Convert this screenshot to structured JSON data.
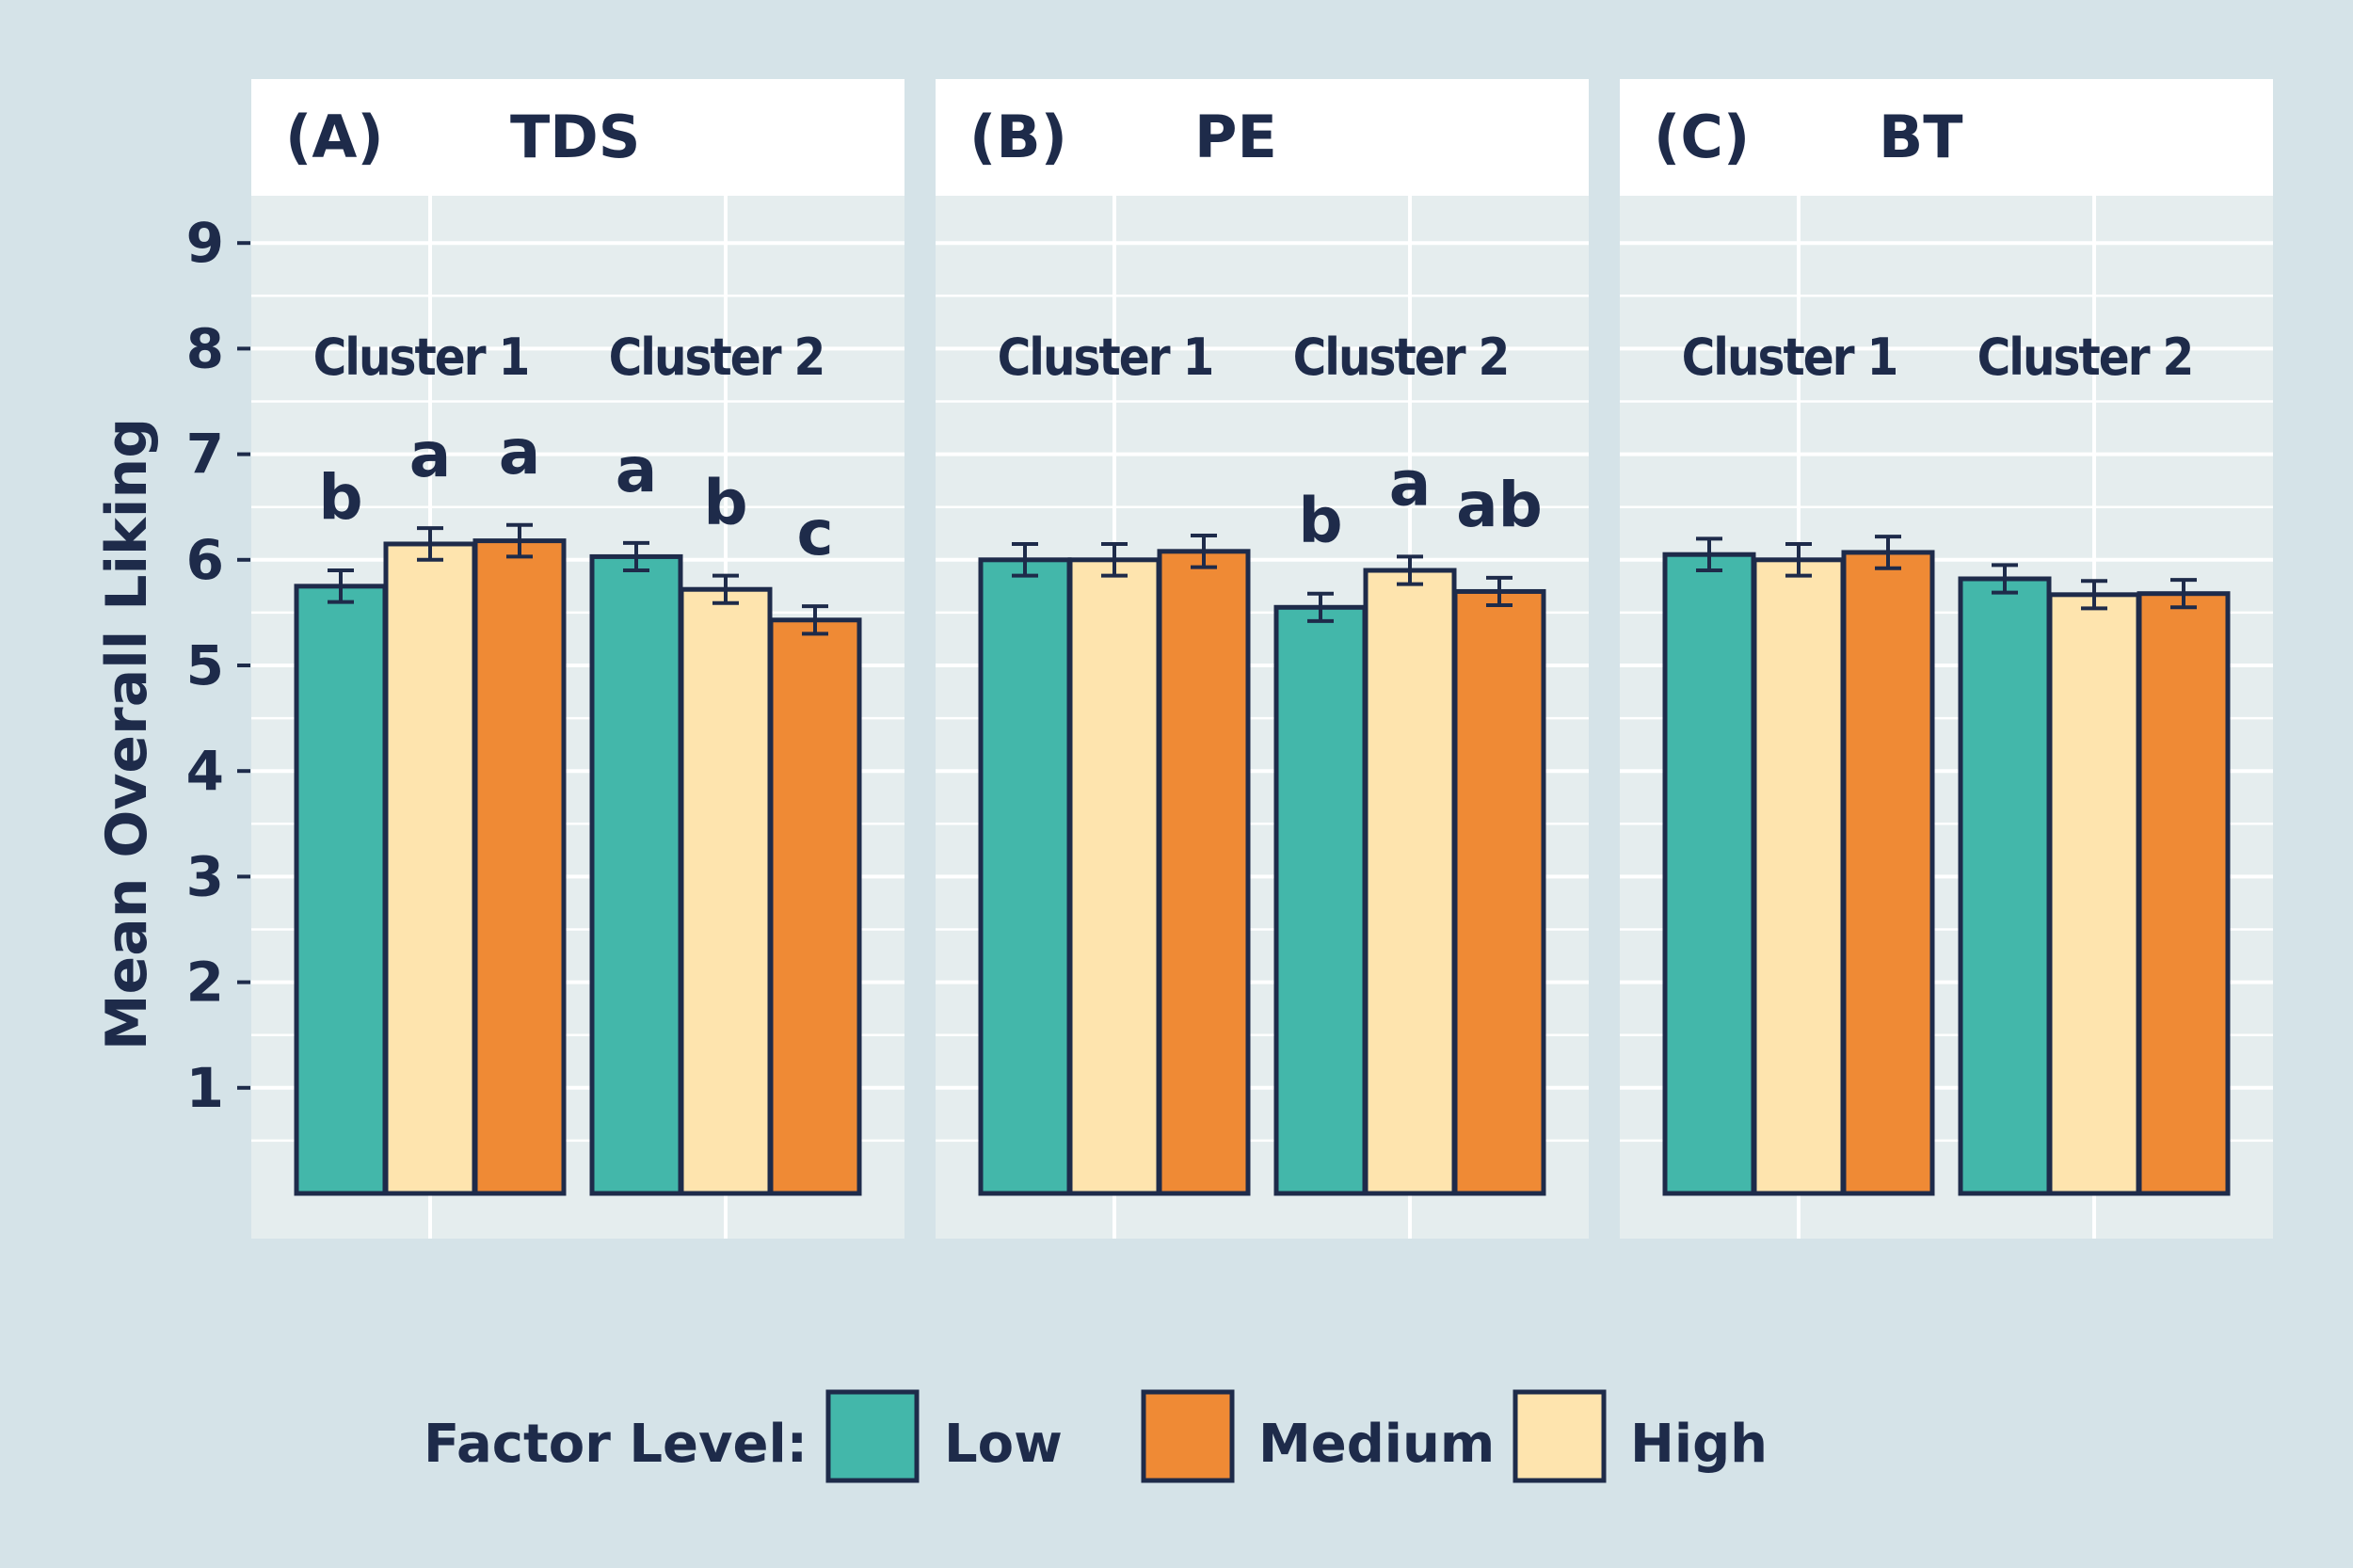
{
  "chart_data": {
    "type": "bar",
    "ylabel": "Mean Overall Liking",
    "yticks": [
      "1",
      "2",
      "3",
      "4",
      "5",
      "6",
      "7",
      "8",
      "9"
    ],
    "ylim": [
      0,
      9.5
    ],
    "grid": true,
    "legend": {
      "title": "Factor Level:",
      "placement": "bottom",
      "items": [
        {
          "name": "Low",
          "color": "#43b7aa"
        },
        {
          "name": "Medium",
          "color": "#ef8a35"
        },
        {
          "name": "High",
          "color": "#fee4ae"
        }
      ]
    },
    "bar_order": [
      "Low",
      "High",
      "Medium"
    ],
    "colors": {
      "Low": "#43b7aa",
      "High": "#fee4ae",
      "Medium": "#ef8a35",
      "outline": "#1e2b4a"
    },
    "panels": [
      {
        "label": "(A)",
        "factor": "TDS",
        "clusters": [
          {
            "name": "Cluster 1",
            "values": {
              "Low": 5.75,
              "High": 6.15,
              "Medium": 6.18
            },
            "errors": {
              "Low": 0.15,
              "High": 0.15,
              "Medium": 0.15
            },
            "sig": {
              "Low": "b",
              "High": "a",
              "Medium": "a"
            }
          },
          {
            "name": "Cluster 2",
            "values": {
              "Low": 6.03,
              "High": 5.72,
              "Medium": 5.43
            },
            "errors": {
              "Low": 0.13,
              "High": 0.13,
              "Medium": 0.13
            },
            "sig": {
              "Low": "a",
              "High": "b",
              "Medium": "c"
            }
          }
        ]
      },
      {
        "label": "(B)",
        "factor": "PE",
        "clusters": [
          {
            "name": "Cluster 1",
            "values": {
              "Low": 6.0,
              "High": 6.0,
              "Medium": 6.08
            },
            "errors": {
              "Low": 0.15,
              "High": 0.15,
              "Medium": 0.15
            },
            "sig": {}
          },
          {
            "name": "Cluster 2",
            "values": {
              "Low": 5.55,
              "High": 5.9,
              "Medium": 5.7
            },
            "errors": {
              "Low": 0.13,
              "High": 0.13,
              "Medium": 0.13
            },
            "sig": {
              "Low": "b",
              "High": "a",
              "Medium": "ab"
            }
          }
        ]
      },
      {
        "label": "(C)",
        "factor": "BT",
        "clusters": [
          {
            "name": "Cluster 1",
            "values": {
              "Low": 6.05,
              "High": 6.0,
              "Medium": 6.07
            },
            "errors": {
              "Low": 0.15,
              "High": 0.15,
              "Medium": 0.15
            },
            "sig": {}
          },
          {
            "name": "Cluster 2",
            "values": {
              "Low": 5.82,
              "High": 5.67,
              "Medium": 5.68
            },
            "errors": {
              "Low": 0.13,
              "High": 0.13,
              "Medium": 0.13
            },
            "sig": {}
          }
        ]
      }
    ]
  }
}
